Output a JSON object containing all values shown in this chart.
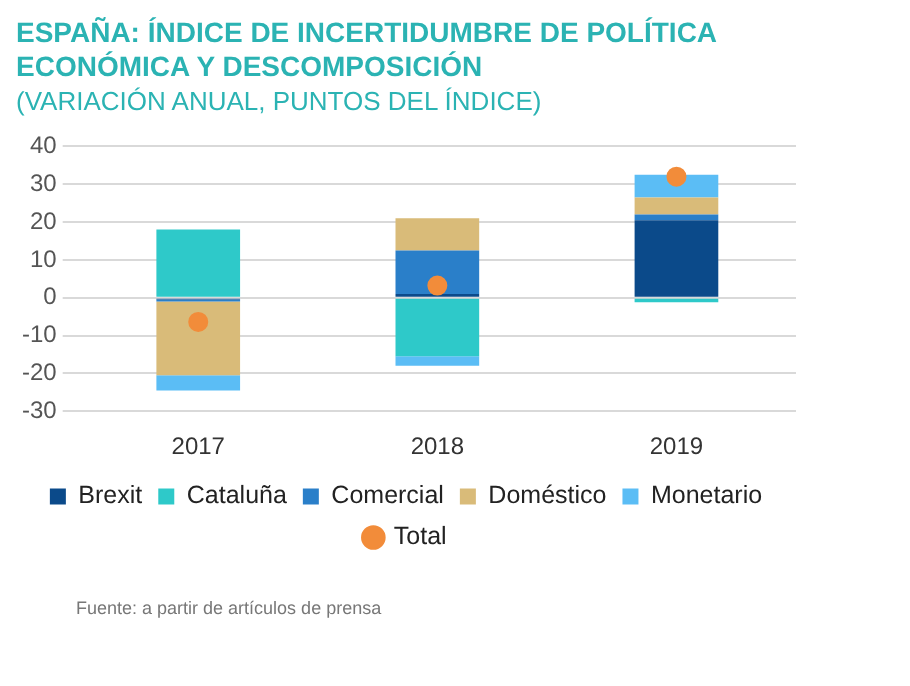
{
  "chart_data": {
    "type": "bar",
    "stacked": true,
    "title": "ESPAÑA: ÍNDICE DE INCERTIDUMBRE DE POLÍTICA ECONÓMICA Y DESCOMPOSICIÓN",
    "subtitle": "(VARIACIÓN ANUAL, PUNTOS DEL ÍNDICE)",
    "categories": [
      "2017",
      "2018",
      "2019"
    ],
    "series": [
      {
        "name": "Brexit",
        "color": "#0b4a8a",
        "values": [
          -0.5,
          1,
          20.5
        ]
      },
      {
        "name": "Cataluña",
        "color": "#2ec9c9",
        "values": [
          18,
          -15.5,
          -1.2
        ]
      },
      {
        "name": "Comercial",
        "color": "#2a7fc9",
        "values": [
          -0.5,
          11.5,
          1.5
        ]
      },
      {
        "name": "Doméstico",
        "color": "#d9bb79",
        "values": [
          -19.5,
          8.5,
          4.5
        ]
      },
      {
        "name": "Monetario",
        "color": "#5bbdf5",
        "values": [
          -4,
          -2.5,
          6
        ]
      },
      {
        "name": "Total",
        "type": "scatter",
        "color": "#f28c3a",
        "values": [
          -6.4,
          3.2,
          32
        ],
        "marker": "circle"
      }
    ],
    "ylim": [
      -30,
      40
    ],
    "yticks": [
      -30,
      -20,
      -10,
      0,
      10,
      20,
      30,
      40
    ],
    "grid": "y",
    "legend": "bottom",
    "annotations": [
      "Fuente: a partir de artículos de prensa"
    ]
  }
}
